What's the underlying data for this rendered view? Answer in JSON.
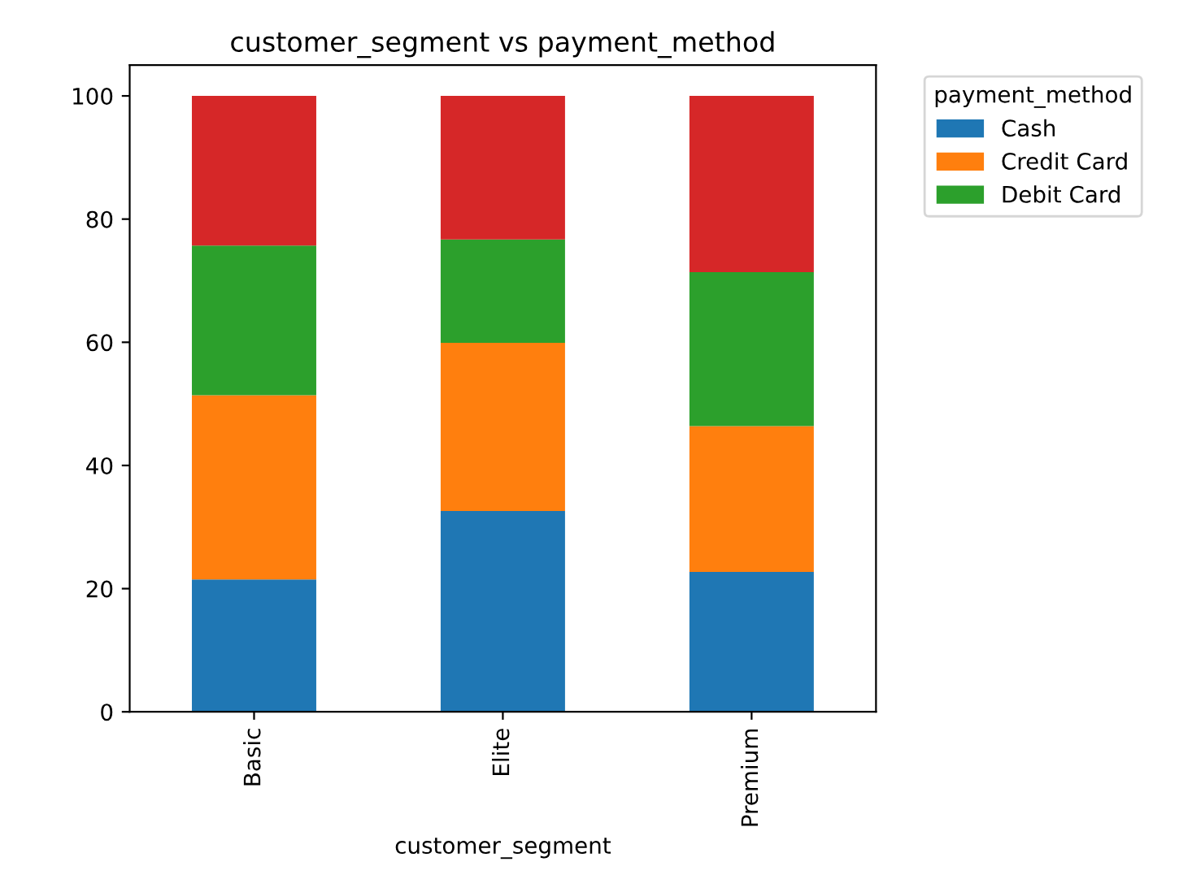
{
  "chart_data": {
    "type": "bar",
    "stacked": true,
    "title": "customer_segment vs payment_method",
    "xlabel": "customer_segment",
    "legend_title": "payment_method",
    "legend": "top right",
    "categories": [
      "Basic",
      "Elite",
      "Premium"
    ],
    "series": [
      {
        "name": "Cash",
        "color": "#1f77b4",
        "values": [
          21.5,
          32.6,
          22.7
        ]
      },
      {
        "name": "Credit Card",
        "color": "#ff7f0e",
        "values": [
          29.9,
          27.3,
          23.7
        ]
      },
      {
        "name": "Debit Card",
        "color": "#2ca02c",
        "values": [
          24.3,
          16.8,
          25.0
        ]
      },
      {
        "color": "#d62728",
        "values": [
          24.3,
          23.3,
          28.6
        ]
      }
    ],
    "ylim": [
      0,
      105
    ],
    "yticks": [
      0,
      20,
      40,
      60,
      80,
      100
    ],
    "grid": false
  }
}
